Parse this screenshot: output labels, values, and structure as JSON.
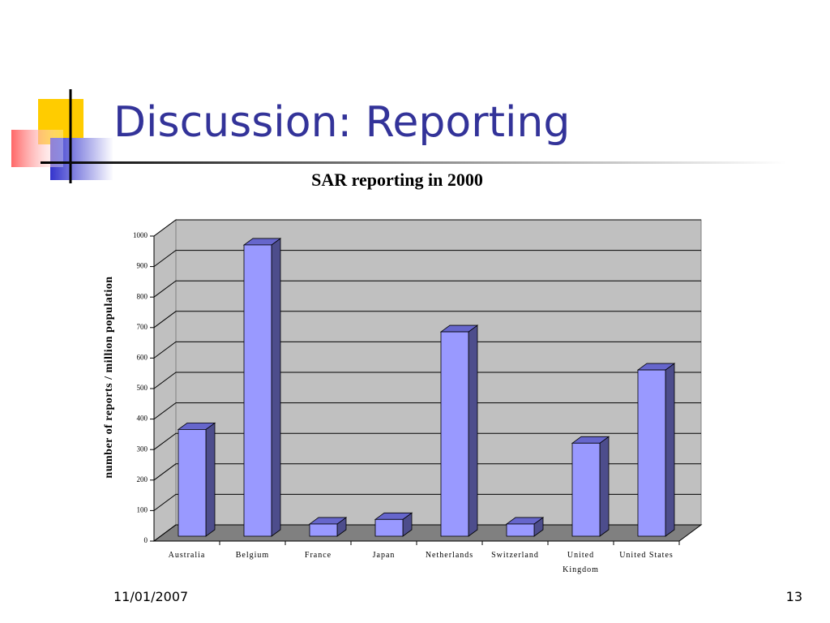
{
  "slide": {
    "title": "Discussion: Reporting",
    "date": "11/01/2007",
    "page": "13"
  },
  "chart_data": {
    "type": "bar3d",
    "title": "SAR reporting in 2000",
    "y_label": "number of reports / million population",
    "categories": [
      "Australia",
      "Belgium",
      "France",
      "Japan",
      "Netherlands",
      "Switzerland",
      "United Kingdom",
      "United States"
    ],
    "values": [
      350,
      955,
      40,
      55,
      670,
      40,
      305,
      545
    ],
    "color": "#9999ff",
    "ylim": [
      0,
      1000
    ],
    "yticks": [
      0,
      100,
      200,
      300,
      400,
      500,
      600,
      700,
      800,
      900,
      1000
    ],
    "grid": true
  }
}
